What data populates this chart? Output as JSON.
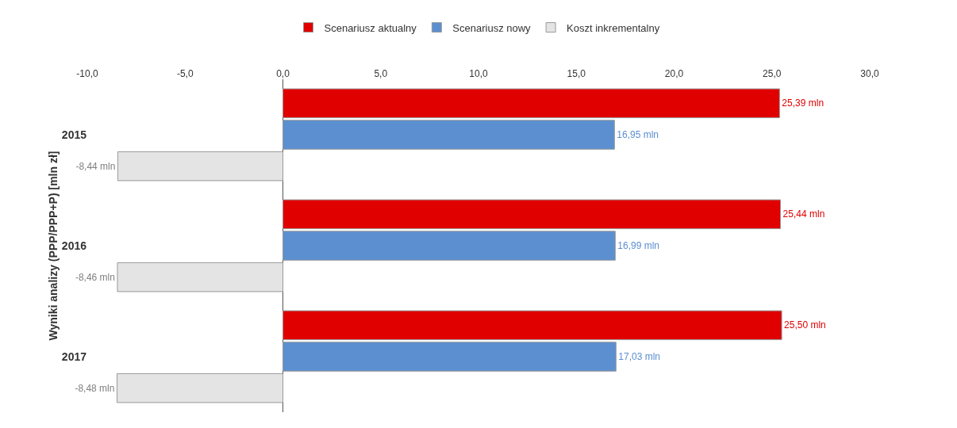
{
  "chart_data": {
    "type": "bar",
    "orientation": "horizontal",
    "ylabel": "Wyniki analizy (PPP/PPP+P) [mln zł]",
    "categories": [
      "2015",
      "2016",
      "2017"
    ],
    "series": [
      {
        "name": "Scenariusz aktualny",
        "color": "#e00000",
        "values": [
          25.39,
          25.44,
          25.5
        ],
        "value_labels": [
          "25,39 mln",
          "25,44 mln",
          "25,50 mln"
        ]
      },
      {
        "name": "Scenariusz nowy",
        "color": "#5b8fd0",
        "values": [
          16.95,
          16.99,
          17.03
        ],
        "value_labels": [
          "16,95 mln",
          "16,99 mln",
          "17,03 mln"
        ]
      },
      {
        "name": "Koszt inkrementalny",
        "color": "#e4e4e4",
        "values": [
          -8.44,
          -8.46,
          -8.48
        ],
        "value_labels": [
          "-8,44 mln",
          "-8,46 mln",
          "-8,48 mln"
        ]
      }
    ],
    "xlim": [
      -10,
      30
    ],
    "xticks": [
      {
        "value": -10,
        "label": "-10,0"
      },
      {
        "value": -5,
        "label": "-5,0"
      },
      {
        "value": 0,
        "label": "0,0"
      },
      {
        "value": 5,
        "label": "5,0"
      },
      {
        "value": 10,
        "label": "10,0"
      },
      {
        "value": 15,
        "label": "15,0"
      },
      {
        "value": 20,
        "label": "20,0"
      },
      {
        "value": 25,
        "label": "25,0"
      },
      {
        "value": 30,
        "label": "30,0"
      }
    ],
    "ref_lines": [
      {
        "axis": "x",
        "value": 0,
        "color": "#555555"
      }
    ],
    "grid": false,
    "legend": "top"
  }
}
